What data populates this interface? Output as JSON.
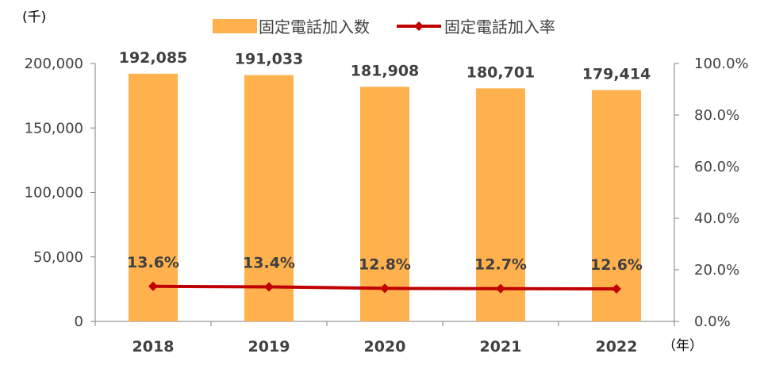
{
  "chart_data": {
    "type": "bar",
    "categories": [
      "2018",
      "2019",
      "2020",
      "2021",
      "2022"
    ],
    "series": [
      {
        "name": "固定電話加入数",
        "type": "bar",
        "axis": "left",
        "values": [
          192085,
          191033,
          181908,
          180701,
          179414
        ],
        "labels": [
          "192,085",
          "191,033",
          "181,908",
          "180,701",
          "179,414"
        ],
        "color": "#FFB14E"
      },
      {
        "name": "固定電話加入率",
        "type": "line",
        "axis": "right",
        "values": [
          13.6,
          13.4,
          12.8,
          12.7,
          12.6
        ],
        "labels": [
          "13.6%",
          "13.4%",
          "12.8%",
          "12.7%",
          "12.6%"
        ],
        "color": "#C00000"
      }
    ],
    "y_left": {
      "unit": "(千)",
      "range": [
        0,
        200000
      ],
      "ticks": [
        0,
        50000,
        100000,
        150000,
        200000
      ],
      "tick_labels": [
        "0",
        "50,000",
        "100,000",
        "150,000",
        "200,000"
      ]
    },
    "y_right": {
      "range": [
        0,
        100
      ],
      "ticks": [
        0,
        20,
        40,
        60,
        80,
        100
      ],
      "tick_labels": [
        "0.0%",
        "20.0%",
        "40.0%",
        "60.0%",
        "80.0%",
        "100.0%"
      ]
    },
    "x_unit": "（年）",
    "legend_position": "top",
    "grid": false
  }
}
